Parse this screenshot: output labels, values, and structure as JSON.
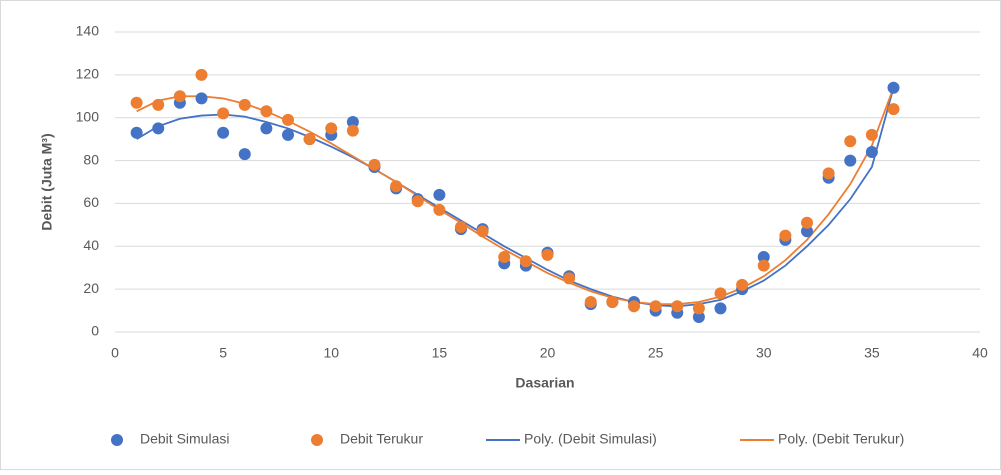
{
  "chart_data": {
    "type": "scatter",
    "xlabel": "Dasarian",
    "ylabel": "Debit (Juta M³)",
    "x": [
      1,
      2,
      3,
      4,
      5,
      6,
      7,
      8,
      9,
      10,
      11,
      12,
      13,
      14,
      15,
      16,
      17,
      18,
      19,
      20,
      21,
      22,
      23,
      24,
      25,
      26,
      27,
      28,
      29,
      30,
      31,
      32,
      33,
      34,
      35,
      36
    ],
    "series": [
      {
        "name": "Debit Simulasi",
        "color": "#4472c4",
        "style": "marker",
        "values": [
          93,
          95,
          107,
          109,
          93,
          83,
          95,
          92,
          90,
          92,
          98,
          77,
          67,
          62,
          64,
          48,
          48,
          32,
          31,
          37,
          26,
          13,
          14,
          14,
          10,
          9,
          7,
          11,
          20,
          35,
          43,
          47,
          72,
          80,
          84,
          114
        ]
      },
      {
        "name": "Debit Terukur",
        "color": "#ed7d31",
        "style": "marker",
        "values": [
          107,
          106,
          110,
          120,
          102,
          106,
          103,
          99,
          90,
          95,
          94,
          78,
          68,
          61,
          57,
          49,
          47,
          35,
          33,
          36,
          25,
          14,
          14,
          12,
          12,
          12,
          11,
          18,
          22,
          31,
          45,
          51,
          74,
          89,
          92,
          104
        ]
      },
      {
        "name": "Poly. (Debit Simulasi)",
        "color": "#4472c4",
        "style": "line",
        "values": [
          90,
          96,
          99.5,
          101,
          101.5,
          100.5,
          98,
          95,
          91,
          86.5,
          81.5,
          76,
          70,
          64,
          58,
          52,
          46,
          40,
          34.5,
          29,
          24,
          20,
          16.5,
          14,
          12.5,
          12,
          13,
          15,
          19,
          24,
          31,
          40,
          50,
          62,
          77,
          114
        ]
      },
      {
        "name": "Poly. (Debit Terukur)",
        "color": "#ed7d31",
        "style": "line",
        "values": [
          103,
          108,
          110,
          110,
          109,
          106.5,
          103,
          98.5,
          93.5,
          88,
          82,
          76,
          70,
          63.5,
          57,
          51,
          44.5,
          38.5,
          33,
          27.5,
          23,
          19,
          16,
          14,
          13,
          13,
          14,
          16.5,
          20.5,
          26,
          33.5,
          43,
          55,
          69,
          87,
          114
        ]
      }
    ],
    "xlim": [
      0,
      40
    ],
    "xticks": [
      0,
      5,
      10,
      15,
      20,
      25,
      30,
      35,
      40
    ],
    "ylim": [
      0,
      140
    ],
    "yticks": [
      0,
      20,
      40,
      60,
      80,
      100,
      120,
      140
    ],
    "grid": true,
    "legend": "bottom"
  }
}
